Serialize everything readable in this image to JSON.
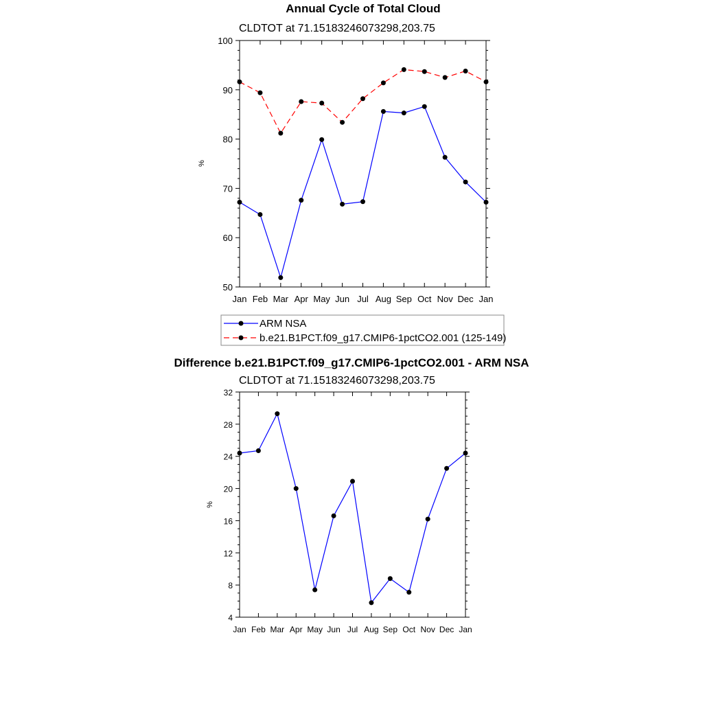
{
  "chart_data": [
    {
      "type": "line",
      "title": "Annual Cycle of Total Cloud",
      "subtitle": "CLDTOT at 71.15183246073298,203.75",
      "ylabel": "%",
      "ylim": [
        50,
        100
      ],
      "yticks": [
        50,
        60,
        70,
        80,
        90,
        100
      ],
      "categories": [
        "Jan",
        "Feb",
        "Mar",
        "Apr",
        "May",
        "Jun",
        "Jul",
        "Aug",
        "Sep",
        "Oct",
        "Nov",
        "Dec",
        "Jan"
      ],
      "series": [
        {
          "name": "ARM NSA",
          "color": "#0000ff",
          "dash": "solid",
          "values": [
            67.2,
            64.7,
            51.9,
            67.6,
            79.9,
            66.8,
            67.3,
            85.6,
            85.3,
            86.6,
            76.3,
            71.3,
            67.2
          ]
        },
        {
          "name": "b.e21.B1PCT.f09_g17.CMIP6-1pctCO2.001 (125-149)",
          "color": "#ff0000",
          "dash": "dashed",
          "values": [
            91.6,
            89.4,
            81.2,
            87.6,
            87.3,
            83.4,
            88.2,
            91.4,
            94.1,
            93.7,
            92.5,
            93.8,
            91.6
          ]
        }
      ]
    },
    {
      "type": "line",
      "title": "Difference b.e21.B1PCT.f09_g17.CMIP6-1pctCO2.001 - ARM NSA",
      "subtitle": "CLDTOT at 71.15183246073298,203.75",
      "ylabel": "%",
      "ylim": [
        4,
        32
      ],
      "yticks": [
        4,
        8,
        12,
        16,
        20,
        24,
        28,
        32
      ],
      "categories": [
        "Jan",
        "Feb",
        "Mar",
        "Apr",
        "May",
        "Jun",
        "Jul",
        "Aug",
        "Sep",
        "Oct",
        "Nov",
        "Dec",
        "Jan"
      ],
      "series": [
        {
          "name": "Difference",
          "color": "#0000ff",
          "dash": "solid",
          "values": [
            24.4,
            24.7,
            29.3,
            20.0,
            7.4,
            16.6,
            20.9,
            5.8,
            8.8,
            7.1,
            16.2,
            22.5,
            24.4
          ]
        }
      ]
    }
  ]
}
